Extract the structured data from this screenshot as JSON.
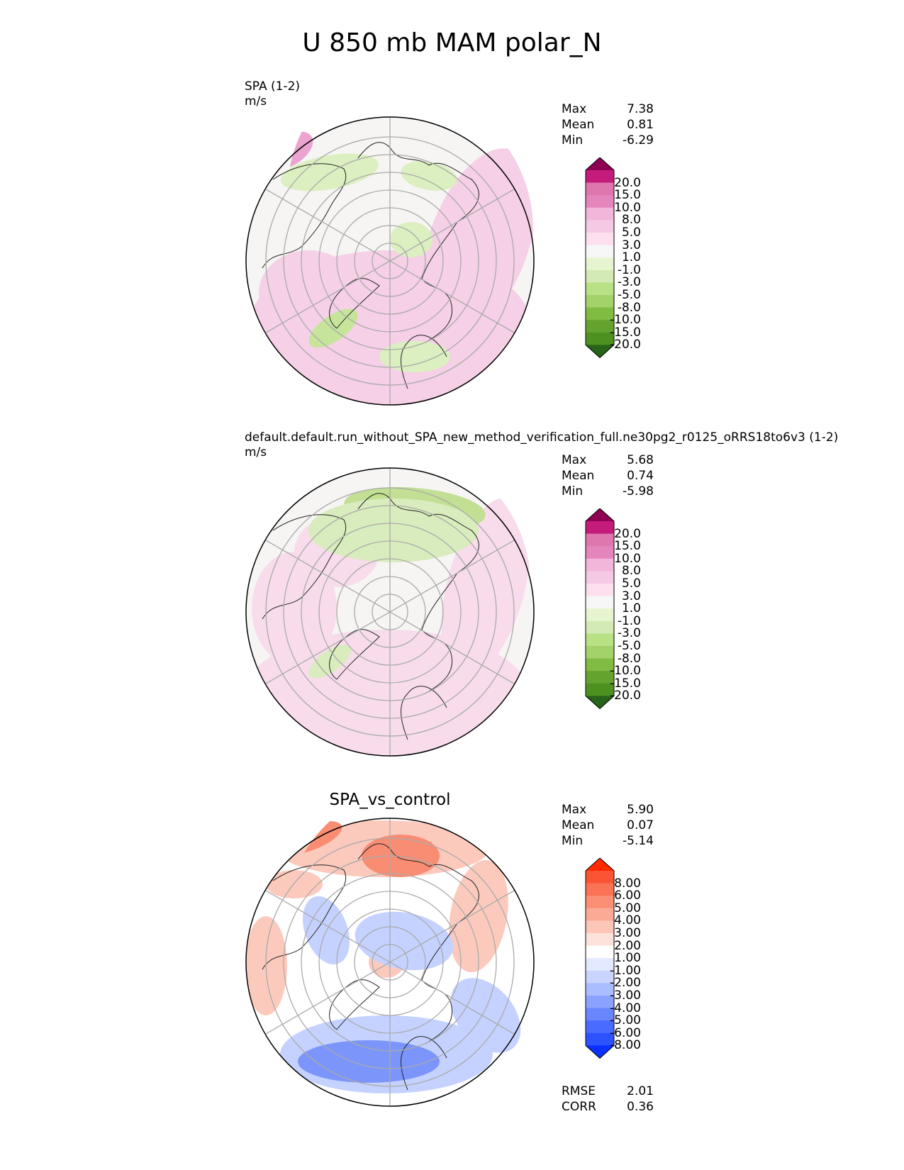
{
  "title": "U 850 mb MAM polar_N",
  "panels": [
    {
      "label": "SPA (1-2)",
      "units": "m/s",
      "stats": [
        {
          "name": "Max",
          "value": "7.38"
        },
        {
          "name": "Mean",
          "value": "0.81"
        },
        {
          "name": "Min",
          "value": "-6.29"
        }
      ],
      "colorbar": {
        "colors": [
          "#276419",
          "#4d9221",
          "#65a32f",
          "#7fbc41",
          "#a3d16a",
          "#b8e186",
          "#d4eab5",
          "#e6f5d0",
          "#f7f7f7",
          "#fde0ef",
          "#f5c8e3",
          "#f1b6da",
          "#e585bd",
          "#de77ae",
          "#c51b7d",
          "#8e0152"
        ],
        "labels": [
          "20.0",
          "15.0",
          "10.0",
          "8.0",
          "5.0",
          "3.0",
          "1.0",
          "-1.0",
          "-3.0",
          "-5.0",
          "-8.0",
          "-10.0",
          "-15.0",
          "-20.0"
        ]
      },
      "field_colors": {
        "pos": "#f5d0e6",
        "pos2": "#eaa4cf",
        "neg": "#dcefc0",
        "neg2": "#c6e49a",
        "base": "#f6f5f4"
      }
    },
    {
      "label": "default.default.run_without_SPA_new_method_verification_full.ne30pg2_r0125_oRRS18to6v3 (1-2)",
      "units": "m/s",
      "stats": [
        {
          "name": "Max",
          "value": "5.68"
        },
        {
          "name": "Mean",
          "value": "0.74"
        },
        {
          "name": "Min",
          "value": "-5.98"
        }
      ],
      "colorbar": {
        "colors": [
          "#276419",
          "#4d9221",
          "#65a32f",
          "#7fbc41",
          "#a3d16a",
          "#b8e186",
          "#d4eab5",
          "#e6f5d0",
          "#f7f7f7",
          "#fde0ef",
          "#f5c8e3",
          "#f1b6da",
          "#e585bd",
          "#de77ae",
          "#c51b7d",
          "#8e0152"
        ],
        "labels": [
          "20.0",
          "15.0",
          "10.0",
          "8.0",
          "5.0",
          "3.0",
          "1.0",
          "-1.0",
          "-3.0",
          "-5.0",
          "-8.0",
          "-10.0",
          "-15.0",
          "-20.0"
        ]
      },
      "field_colors": {
        "pos": "#f8dcec",
        "pos2": "#f0bcd9",
        "neg": "#d9ecbd",
        "neg2": "#c2df93",
        "base": "#f6f5f4"
      }
    },
    {
      "title": "SPA_vs_control",
      "stats": [
        {
          "name": "Max",
          "value": "5.90"
        },
        {
          "name": "Mean",
          "value": "0.07"
        },
        {
          "name": "Min",
          "value": "-5.14"
        }
      ],
      "colorbar": {
        "colors": [
          "#0a31ff",
          "#2d52ff",
          "#4a6bff",
          "#6a86ff",
          "#8ba2ff",
          "#aabdff",
          "#c9d5ff",
          "#e3e9ff",
          "#ffffff",
          "#fde2dc",
          "#fcc7b9",
          "#fbaa96",
          "#fb8f75",
          "#fa7355",
          "#f95535",
          "#ff2a00"
        ],
        "labels": [
          "8.00",
          "6.00",
          "5.00",
          "4.00",
          "3.00",
          "2.00",
          "1.00",
          "-1.00",
          "-2.00",
          "-3.00",
          "-4.00",
          "-5.00",
          "-6.00",
          "-8.00"
        ]
      },
      "field_colors": {
        "pos": "#fccabd",
        "pos2": "#f88d73",
        "neg": "#c5d2ff",
        "neg2": "#7b95fb",
        "base": "#ffffff"
      },
      "metrics": [
        {
          "name": "RMSE",
          "value": "2.01"
        },
        {
          "name": "CORR",
          "value": "0.36"
        }
      ]
    }
  ]
}
